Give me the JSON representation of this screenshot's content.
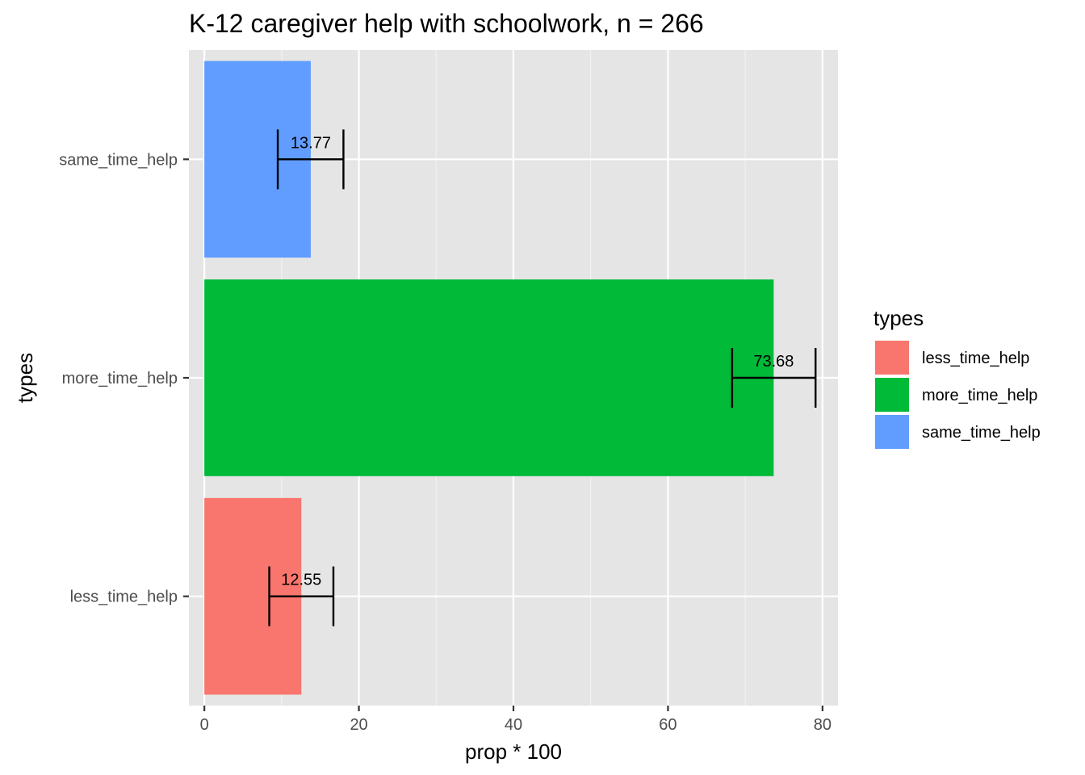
{
  "chart_data": {
    "type": "bar",
    "orientation": "horizontal",
    "title": "K-12 caregiver help with schoolwork, n = 266",
    "xlabel": "prop * 100",
    "ylabel": "types",
    "xlim": [
      -2,
      82
    ],
    "x_ticks": [
      0,
      20,
      40,
      60,
      80
    ],
    "categories": [
      "less_time_help",
      "more_time_help",
      "same_time_help"
    ],
    "values": [
      12.55,
      73.68,
      13.77
    ],
    "value_labels": [
      "12.55",
      "73.68",
      "13.77"
    ],
    "error_bars": [
      {
        "low": 8.4,
        "high": 16.7
      },
      {
        "low": 68.3,
        "high": 79.1
      },
      {
        "low": 9.5,
        "high": 18.0
      }
    ],
    "colors": [
      "#F8766D",
      "#00BA38",
      "#619CFF"
    ],
    "panel_background": "#E5E5E5",
    "grid": true,
    "legend": {
      "title": "types",
      "position": "right",
      "items": [
        "less_time_help",
        "more_time_help",
        "same_time_help"
      ]
    }
  }
}
